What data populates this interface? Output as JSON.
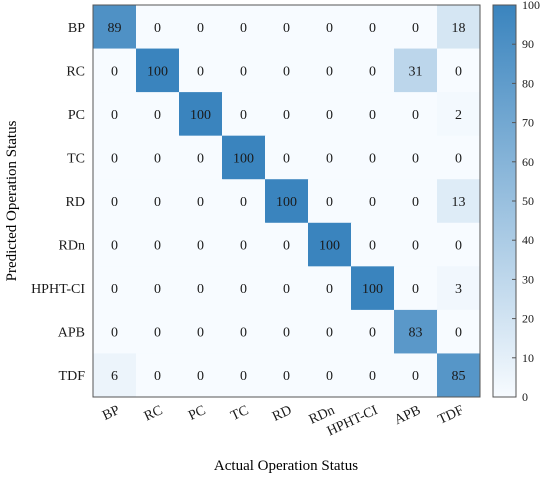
{
  "chart_data": {
    "type": "heatmap",
    "title": "",
    "xlabel": "Actual Operation Status",
    "ylabel": "Predicted Operation Status",
    "x_categories": [
      "BP",
      "RC",
      "PC",
      "TC",
      "RD",
      "RDn",
      "HPHT-CI",
      "APB",
      "TDF"
    ],
    "y_categories": [
      "BP",
      "RC",
      "PC",
      "TC",
      "RD",
      "RDn",
      "HPHT-CI",
      "APB",
      "TDF"
    ],
    "values": [
      [
        89,
        0,
        0,
        0,
        0,
        0,
        0,
        0,
        18
      ],
      [
        0,
        100,
        0,
        0,
        0,
        0,
        0,
        31,
        0
      ],
      [
        0,
        0,
        100,
        0,
        0,
        0,
        0,
        0,
        2
      ],
      [
        0,
        0,
        0,
        100,
        0,
        0,
        0,
        0,
        0
      ],
      [
        0,
        0,
        0,
        0,
        100,
        0,
        0,
        0,
        13
      ],
      [
        0,
        0,
        0,
        0,
        0,
        100,
        0,
        0,
        0
      ],
      [
        0,
        0,
        0,
        0,
        0,
        0,
        100,
        0,
        3
      ],
      [
        0,
        0,
        0,
        0,
        0,
        0,
        0,
        83,
        0
      ],
      [
        6,
        0,
        0,
        0,
        0,
        0,
        0,
        0,
        85
      ]
    ],
    "colorbar": {
      "range": [
        0,
        100
      ],
      "ticks": [
        0,
        10,
        20,
        30,
        40,
        50,
        60,
        70,
        80,
        90,
        100
      ],
      "low_color": "#f7fbff",
      "high_color": "#3a84be"
    },
    "grid": false,
    "colors": {
      "text": "#1a1a1a",
      "axis": "#555555"
    }
  }
}
